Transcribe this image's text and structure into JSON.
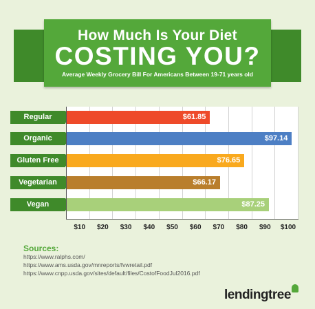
{
  "banner": {
    "title_line1": "How Much Is Your Diet",
    "title_line2": "COSTING YOU?",
    "subtitle": "Average Weekly Grocery Bill For Americans Between 19-71 years old"
  },
  "chart_data": {
    "type": "bar",
    "orientation": "horizontal",
    "categories": [
      "Regular",
      "Organic",
      "Gluten Free",
      "Vegetarian",
      "Vegan"
    ],
    "values": [
      61.85,
      97.14,
      76.65,
      66.17,
      87.25
    ],
    "value_labels": [
      "$61.85",
      "$97.14",
      "$76.65",
      "$66.17",
      "$87.25"
    ],
    "bar_colors": [
      "#ee4a2a",
      "#4d7fc4",
      "#f9a91e",
      "#b97e2c",
      "#a8d07a"
    ],
    "xlim": [
      0,
      100
    ],
    "xticks": [
      10,
      20,
      30,
      40,
      50,
      60,
      70,
      80,
      90,
      100
    ],
    "xtick_labels": [
      "$10",
      "$20",
      "$30",
      "$40",
      "$50",
      "$60",
      "$70",
      "$80",
      "$90",
      "$100"
    ],
    "grid": true,
    "title": "",
    "xlabel": "",
    "ylabel": ""
  },
  "sources": {
    "title": "Sources:",
    "items": [
      "https://www.ralphs.com/",
      "https://www.ams.usda.gov/mnreports/fvwretail.pdf",
      "https://www.cnpp.usda.gov/sites/default/files/CostofFoodJul2016.pdf"
    ]
  },
  "logo": {
    "text": "lendingtree",
    "icon": "tree-icon"
  },
  "colors": {
    "accent": "#54a83a",
    "accent_dark": "#3f8a2a",
    "background": "#eaf2dc"
  }
}
